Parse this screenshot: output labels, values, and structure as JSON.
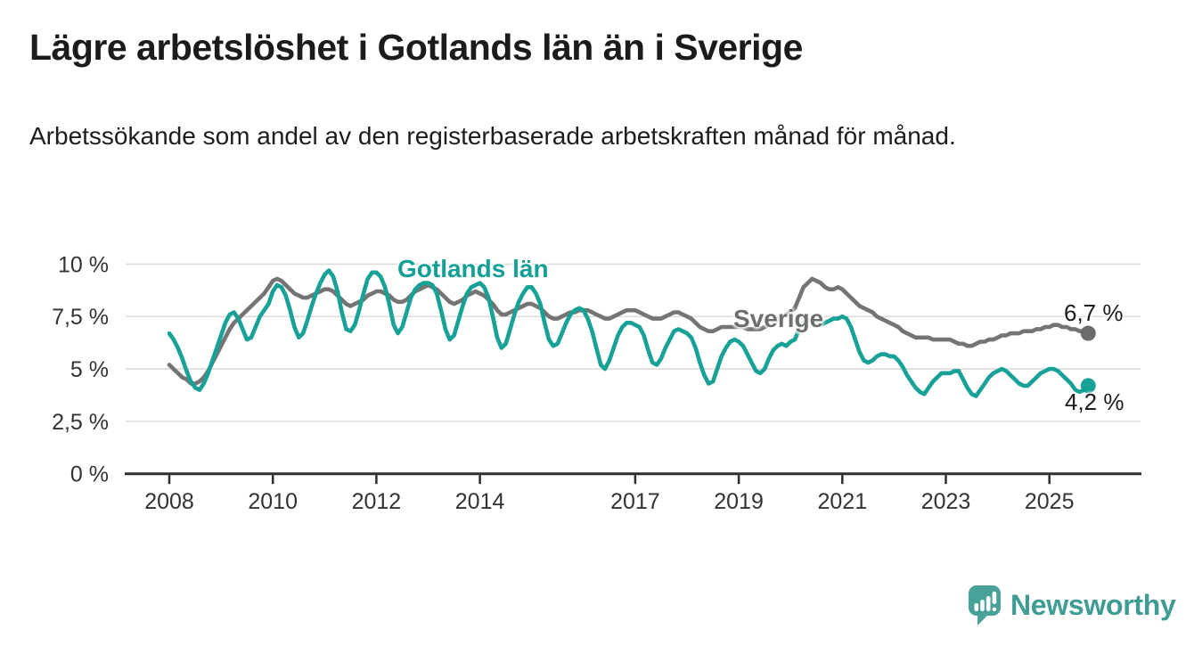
{
  "header": {
    "title": "Lägre arbetslöshet i Gotlands län än i Sverige",
    "subtitle": "Arbetssökande som andel av den registerbaserade arbetskraften månad för månad."
  },
  "chart_data": {
    "type": "line",
    "x_start": "2008-01",
    "x_end": "2025-10",
    "x_frequency": "monthly",
    "x_tick_labels": [
      "2008",
      "2010",
      "2012",
      "2014",
      "2017",
      "2019",
      "2021",
      "2023",
      "2025"
    ],
    "y_tick_labels": [
      "0 %",
      "2,5 %",
      "5 %",
      "7,5 %",
      "10 %"
    ],
    "y_ticks": [
      0,
      2.5,
      5,
      7.5,
      10
    ],
    "ylim": [
      0,
      10.5
    ],
    "grid": "horizontal",
    "legend_position": "inline-labels",
    "series": [
      {
        "name": "Sverige",
        "color": "#747474",
        "dot_color": "#6b6b6b",
        "end_label": "6,7 %",
        "end_value": 6.7,
        "values": [
          5.2,
          5.0,
          4.8,
          4.6,
          4.5,
          4.3,
          4.3,
          4.4,
          4.6,
          4.9,
          5.3,
          5.7,
          6.1,
          6.5,
          6.9,
          7.2,
          7.4,
          7.6,
          7.8,
          8.0,
          8.2,
          8.4,
          8.6,
          8.9,
          9.2,
          9.3,
          9.2,
          9.0,
          8.8,
          8.6,
          8.5,
          8.4,
          8.4,
          8.5,
          8.6,
          8.7,
          8.8,
          8.8,
          8.7,
          8.5,
          8.3,
          8.1,
          8.0,
          8.1,
          8.2,
          8.3,
          8.5,
          8.6,
          8.7,
          8.7,
          8.6,
          8.5,
          8.3,
          8.2,
          8.2,
          8.3,
          8.5,
          8.7,
          8.8,
          8.9,
          9.0,
          8.9,
          8.8,
          8.6,
          8.4,
          8.2,
          8.1,
          8.2,
          8.3,
          8.5,
          8.6,
          8.7,
          8.6,
          8.5,
          8.3,
          8.1,
          7.8,
          7.6,
          7.6,
          7.7,
          7.8,
          7.9,
          8.0,
          8.1,
          8.1,
          8.0,
          7.9,
          7.7,
          7.5,
          7.4,
          7.4,
          7.5,
          7.6,
          7.7,
          7.7,
          7.8,
          7.8,
          7.8,
          7.7,
          7.6,
          7.5,
          7.4,
          7.4,
          7.5,
          7.6,
          7.7,
          7.8,
          7.8,
          7.8,
          7.7,
          7.6,
          7.5,
          7.4,
          7.4,
          7.4,
          7.5,
          7.6,
          7.7,
          7.7,
          7.6,
          7.5,
          7.4,
          7.2,
          7.0,
          6.9,
          6.8,
          6.8,
          6.9,
          7.0,
          7.0,
          7.0,
          7.0,
          7.0,
          7.0,
          6.9,
          6.9,
          6.9,
          6.9,
          7.0,
          7.1,
          7.2,
          7.4,
          7.5,
          7.6,
          7.7,
          7.9,
          8.4,
          8.9,
          9.1,
          9.3,
          9.2,
          9.1,
          8.9,
          8.8,
          8.8,
          8.9,
          8.8,
          8.6,
          8.4,
          8.2,
          8.0,
          7.9,
          7.8,
          7.7,
          7.5,
          7.4,
          7.3,
          7.2,
          7.1,
          7.0,
          6.8,
          6.7,
          6.6,
          6.5,
          6.5,
          6.5,
          6.5,
          6.4,
          6.4,
          6.4,
          6.4,
          6.4,
          6.3,
          6.2,
          6.2,
          6.1,
          6.1,
          6.2,
          6.3,
          6.3,
          6.4,
          6.4,
          6.5,
          6.6,
          6.6,
          6.7,
          6.7,
          6.7,
          6.8,
          6.8,
          6.8,
          6.9,
          6.9,
          7.0,
          7.0,
          7.1,
          7.1,
          7.0,
          7.0,
          6.9,
          6.9,
          6.8,
          6.8,
          6.7
        ]
      },
      {
        "name": "Gotlands län",
        "color": "#17a197",
        "dot_color": "#17a197",
        "end_label": "4,2 %",
        "end_value": 4.2,
        "values": [
          6.7,
          6.4,
          6.0,
          5.5,
          4.9,
          4.4,
          4.1,
          4.0,
          4.3,
          4.8,
          5.4,
          6.0,
          6.6,
          7.2,
          7.6,
          7.7,
          7.4,
          6.9,
          6.4,
          6.5,
          7.0,
          7.5,
          7.8,
          8.1,
          8.7,
          9.0,
          8.9,
          8.5,
          7.8,
          7.0,
          6.5,
          6.7,
          7.3,
          8.0,
          8.6,
          9.1,
          9.5,
          9.7,
          9.4,
          8.7,
          7.7,
          6.9,
          6.8,
          7.1,
          7.8,
          8.6,
          9.3,
          9.6,
          9.6,
          9.4,
          8.9,
          8.1,
          7.1,
          6.7,
          7.0,
          7.7,
          8.4,
          8.8,
          9.0,
          9.1,
          9.1,
          9.0,
          8.6,
          7.8,
          6.9,
          6.4,
          6.6,
          7.3,
          8.0,
          8.6,
          8.9,
          9.0,
          9.1,
          8.9,
          8.4,
          7.5,
          6.5,
          6.0,
          6.2,
          6.9,
          7.6,
          8.2,
          8.6,
          8.9,
          8.9,
          8.6,
          8.1,
          7.2,
          6.4,
          6.1,
          6.2,
          6.7,
          7.2,
          7.6,
          7.8,
          7.9,
          7.8,
          7.4,
          6.8,
          6.0,
          5.2,
          5.0,
          5.4,
          6.0,
          6.6,
          7.0,
          7.2,
          7.2,
          7.1,
          7.0,
          6.6,
          5.9,
          5.3,
          5.2,
          5.5,
          6.0,
          6.4,
          6.8,
          6.9,
          6.8,
          6.7,
          6.5,
          6.0,
          5.3,
          4.7,
          4.3,
          4.4,
          5.0,
          5.6,
          6.0,
          6.3,
          6.4,
          6.3,
          6.1,
          5.7,
          5.3,
          4.9,
          4.8,
          5.0,
          5.5,
          5.9,
          6.1,
          6.2,
          6.1,
          6.3,
          6.4,
          6.9,
          7.2,
          7.3,
          7.3,
          7.2,
          7.1,
          7.2,
          7.3,
          7.4,
          7.4,
          7.5,
          7.4,
          7.0,
          6.4,
          5.8,
          5.4,
          5.3,
          5.4,
          5.6,
          5.7,
          5.7,
          5.6,
          5.6,
          5.4,
          5.1,
          4.7,
          4.4,
          4.1,
          3.9,
          3.8,
          4.1,
          4.4,
          4.6,
          4.8,
          4.8,
          4.8,
          4.9,
          4.9,
          4.5,
          4.1,
          3.8,
          3.7,
          4.0,
          4.3,
          4.6,
          4.8,
          4.9,
          5.0,
          4.9,
          4.7,
          4.5,
          4.3,
          4.2,
          4.2,
          4.4,
          4.6,
          4.8,
          4.9,
          5.0,
          5.0,
          4.9,
          4.7,
          4.5,
          4.3,
          4.0,
          3.9,
          4.0,
          4.2
        ]
      }
    ]
  },
  "colors": {
    "accent_teal": "#17a197",
    "line_gray": "#747474",
    "grid": "#dcdcdc",
    "axis": "#2d2d2d",
    "tick_text": "#333333",
    "brand_teal": "#3f9c94",
    "brand_icon": "#48a29a"
  },
  "footer": {
    "brand": "Newsworthy"
  }
}
